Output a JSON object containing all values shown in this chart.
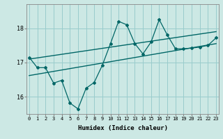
{
  "title": "",
  "xlabel": "Humidex (Indice chaleur)",
  "ylabel": "",
  "background_color": "#cce8e4",
  "grid_color": "#99cccc",
  "line_color": "#006666",
  "x_ticks": [
    0,
    1,
    2,
    3,
    4,
    5,
    6,
    7,
    8,
    9,
    10,
    11,
    12,
    13,
    14,
    15,
    16,
    17,
    18,
    19,
    20,
    21,
    22,
    23
  ],
  "y_ticks": [
    16,
    17,
    18
  ],
  "ylim": [
    15.5,
    18.7
  ],
  "xlim": [
    -0.3,
    23.3
  ],
  "main_line_x": [
    0,
    1,
    2,
    3,
    4,
    5,
    6,
    7,
    8,
    9,
    10,
    11,
    12,
    13,
    14,
    15,
    16,
    17,
    18,
    19,
    20,
    21,
    22,
    23
  ],
  "main_line_y": [
    17.15,
    16.85,
    16.85,
    16.4,
    16.48,
    15.82,
    15.65,
    16.25,
    16.42,
    16.92,
    17.55,
    18.2,
    18.1,
    17.55,
    17.25,
    17.6,
    18.25,
    17.8,
    17.4,
    17.4,
    17.42,
    17.45,
    17.5,
    17.72
  ],
  "upper_line_x": [
    0,
    23
  ],
  "upper_line_y": [
    17.1,
    17.9
  ],
  "lower_line_x": [
    0,
    23
  ],
  "lower_line_y": [
    16.62,
    17.55
  ]
}
